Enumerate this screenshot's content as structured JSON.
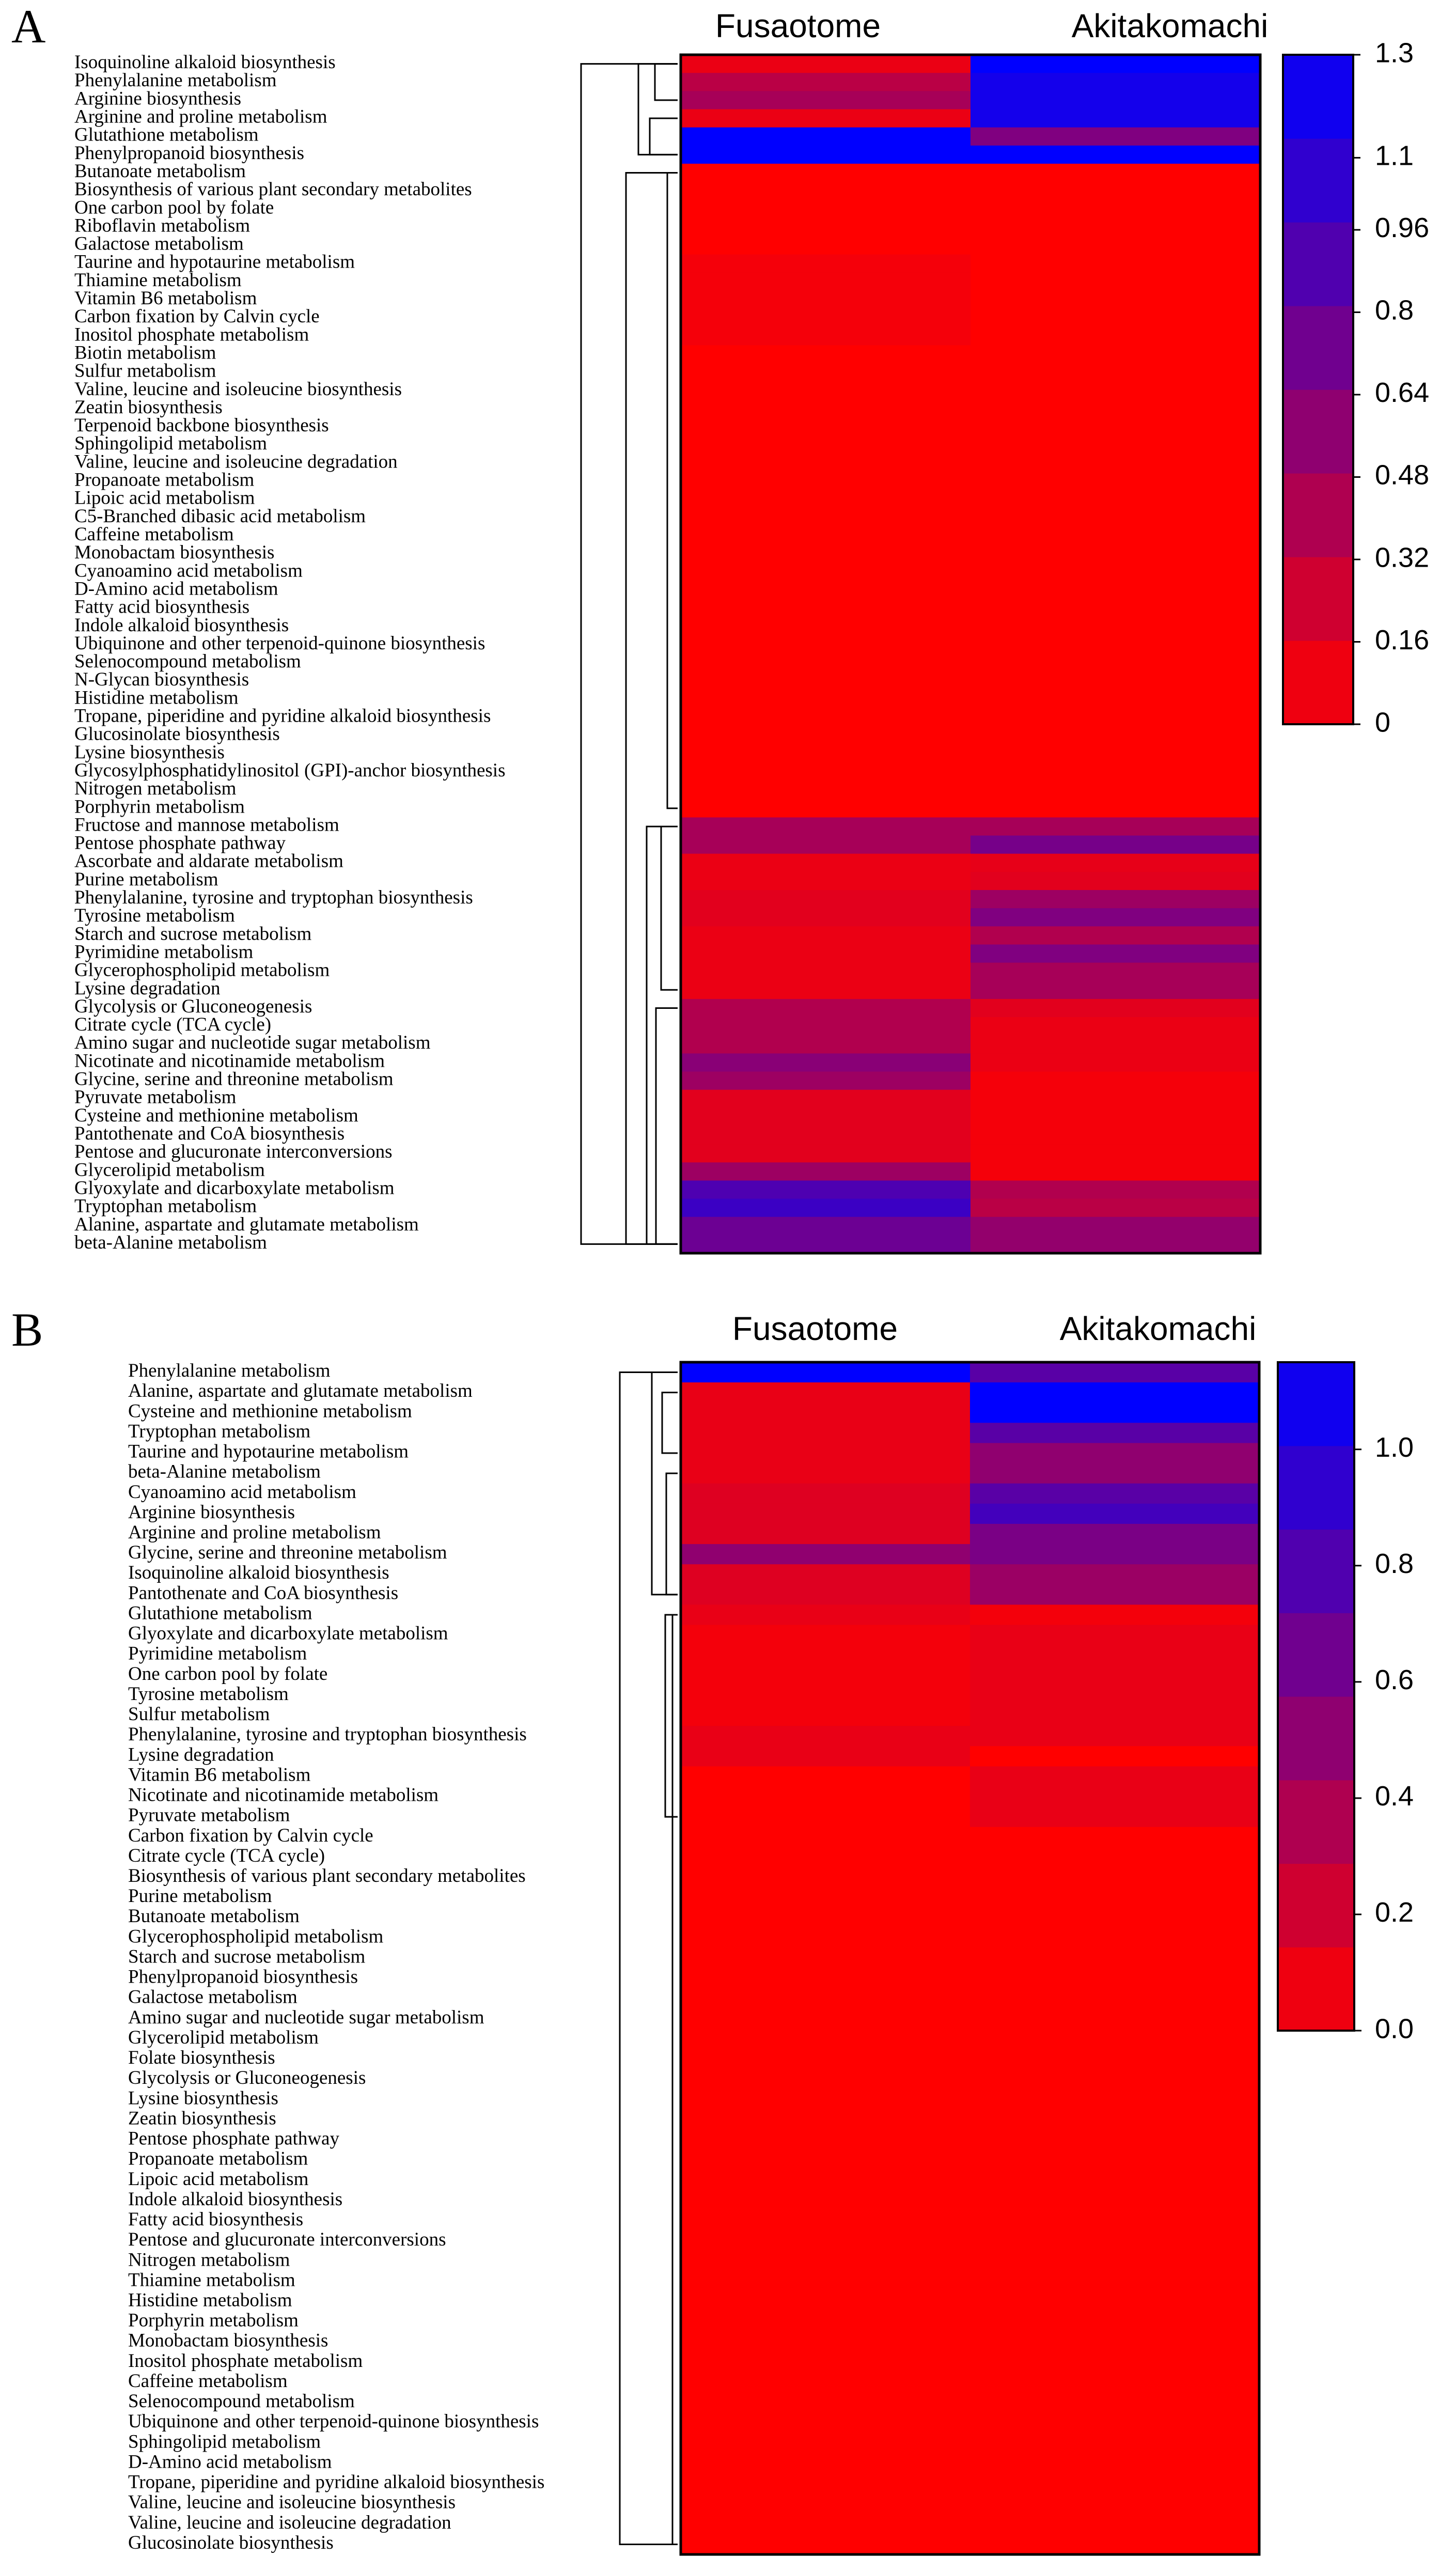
{
  "chart_data": [
    {
      "type": "heatmap",
      "panel": "A",
      "columns": [
        "Fusaotome",
        "Akitakomachi"
      ],
      "colorbar": {
        "min": 0,
        "max": 1.3,
        "ticks": [
          0,
          0.16,
          0.32,
          0.48,
          0.64,
          0.8,
          0.96,
          1.1,
          1.3
        ],
        "tick_labels": [
          "0",
          "0.16",
          "0.32",
          "0.48",
          "0.64",
          "0.8",
          "0.96",
          "1.1",
          "1.3"
        ],
        "low_color": "#ff0000",
        "high_color": "#0000ff"
      },
      "rows": [
        {
          "label": "Isoquinoline alkaloid biosynthesis",
          "values": [
            0.1,
            1.3
          ]
        },
        {
          "label": "Phenylalanine metabolism",
          "values": [
            0.35,
            1.2
          ]
        },
        {
          "label": "Arginine biosynthesis",
          "values": [
            0.45,
            1.2
          ]
        },
        {
          "label": "Arginine and proline metabolism",
          "values": [
            0.1,
            1.2
          ]
        },
        {
          "label": "Glutathione metabolism",
          "values": [
            1.3,
            0.65
          ]
        },
        {
          "label": "Phenylpropanoid biosynthesis",
          "values": [
            1.3,
            1.3
          ]
        },
        {
          "label": "Butanoate metabolism",
          "values": [
            0.0,
            0.0
          ]
        },
        {
          "label": "Biosynthesis of various plant secondary metabolites",
          "values": [
            0.0,
            0.0
          ]
        },
        {
          "label": "One carbon pool by folate",
          "values": [
            0.0,
            0.0
          ]
        },
        {
          "label": "Riboflavin metabolism",
          "values": [
            0.0,
            0.0
          ]
        },
        {
          "label": "Galactose metabolism",
          "values": [
            0.0,
            0.0
          ]
        },
        {
          "label": "Taurine and hypotaurine metabolism",
          "values": [
            0.05,
            0.0
          ]
        },
        {
          "label": "Thiamine metabolism",
          "values": [
            0.05,
            0.0
          ]
        },
        {
          "label": "Vitamin B6 metabolism",
          "values": [
            0.05,
            0.0
          ]
        },
        {
          "label": "Carbon fixation by Calvin cycle",
          "values": [
            0.05,
            0.0
          ]
        },
        {
          "label": "Inositol phosphate metabolism",
          "values": [
            0.05,
            0.0
          ]
        },
        {
          "label": "Biotin metabolism",
          "values": [
            0.0,
            0.0
          ]
        },
        {
          "label": "Sulfur metabolism",
          "values": [
            0.0,
            0.0
          ]
        },
        {
          "label": "Valine, leucine and isoleucine biosynthesis",
          "values": [
            0.0,
            0.0
          ]
        },
        {
          "label": "Zeatin biosynthesis",
          "values": [
            0.0,
            0.0
          ]
        },
        {
          "label": "Terpenoid backbone biosynthesis",
          "values": [
            0.0,
            0.0
          ]
        },
        {
          "label": "Sphingolipid metabolism",
          "values": [
            0.0,
            0.0
          ]
        },
        {
          "label": "Valine, leucine and isoleucine degradation",
          "values": [
            0.0,
            0.0
          ]
        },
        {
          "label": "Propanoate metabolism",
          "values": [
            0.0,
            0.0
          ]
        },
        {
          "label": "Lipoic acid metabolism",
          "values": [
            0.0,
            0.0
          ]
        },
        {
          "label": "C5-Branched dibasic acid metabolism",
          "values": [
            0.0,
            0.0
          ]
        },
        {
          "label": "Caffeine metabolism",
          "values": [
            0.0,
            0.0
          ]
        },
        {
          "label": "Monobactam biosynthesis",
          "values": [
            0.0,
            0.0
          ]
        },
        {
          "label": "Cyanoamino acid metabolism",
          "values": [
            0.0,
            0.0
          ]
        },
        {
          "label": "D-Amino acid metabolism",
          "values": [
            0.0,
            0.0
          ]
        },
        {
          "label": "Fatty acid biosynthesis",
          "values": [
            0.0,
            0.0
          ]
        },
        {
          "label": "Indole alkaloid biosynthesis",
          "values": [
            0.0,
            0.0
          ]
        },
        {
          "label": "Ubiquinone and other terpenoid-quinone biosynthesis",
          "values": [
            0.0,
            0.0
          ]
        },
        {
          "label": "Selenocompound metabolism",
          "values": [
            0.0,
            0.0
          ]
        },
        {
          "label": "N-Glycan biosynthesis",
          "values": [
            0.0,
            0.0
          ]
        },
        {
          "label": "Histidine metabolism",
          "values": [
            0.0,
            0.0
          ]
        },
        {
          "label": "Tropane, piperidine and pyridine alkaloid biosynthesis",
          "values": [
            0.0,
            0.0
          ]
        },
        {
          "label": "Glucosinolate biosynthesis",
          "values": [
            0.0,
            0.0
          ]
        },
        {
          "label": "Lysine biosynthesis",
          "values": [
            0.0,
            0.0
          ]
        },
        {
          "label": "Glycosylphosphatidylinositol (GPI)-anchor biosynthesis",
          "values": [
            0.0,
            0.0
          ]
        },
        {
          "label": "Nitrogen metabolism",
          "values": [
            0.0,
            0.0
          ]
        },
        {
          "label": "Porphyrin metabolism",
          "values": [
            0.0,
            0.0
          ]
        },
        {
          "label": "Fructose and mannose metabolism",
          "values": [
            0.45,
            0.45
          ]
        },
        {
          "label": "Pentose phosphate pathway",
          "values": [
            0.45,
            0.7
          ]
        },
        {
          "label": "Ascorbate and aldarate metabolism",
          "values": [
            0.1,
            0.12
          ]
        },
        {
          "label": "Purine metabolism",
          "values": [
            0.1,
            0.15
          ]
        },
        {
          "label": "Phenylalanine, tyrosine and tryptophan biosynthesis",
          "values": [
            0.15,
            0.5
          ]
        },
        {
          "label": "Tyrosine metabolism",
          "values": [
            0.15,
            0.65
          ]
        },
        {
          "label": "Starch and sucrose metabolism",
          "values": [
            0.1,
            0.4
          ]
        },
        {
          "label": "Pyrimidine metabolism",
          "values": [
            0.1,
            0.65
          ]
        },
        {
          "label": "Glycerophospholipid metabolism",
          "values": [
            0.1,
            0.45
          ]
        },
        {
          "label": "Lysine degradation",
          "values": [
            0.1,
            0.45
          ]
        },
        {
          "label": "Glycolysis or Gluconeogenesis",
          "values": [
            0.4,
            0.15
          ]
        },
        {
          "label": "Citrate cycle (TCA cycle)",
          "values": [
            0.4,
            0.1
          ]
        },
        {
          "label": "Amino sugar and nucleotide sugar metabolism",
          "values": [
            0.4,
            0.1
          ]
        },
        {
          "label": "Nicotinate and nicotinamide metabolism",
          "values": [
            0.6,
            0.1
          ]
        },
        {
          "label": "Glycine, serine and threonine metabolism",
          "values": [
            0.5,
            0.05
          ]
        },
        {
          "label": "Pyruvate metabolism",
          "values": [
            0.15,
            0.05
          ]
        },
        {
          "label": "Cysteine and methionine metabolism",
          "values": [
            0.15,
            0.05
          ]
        },
        {
          "label": "Pantothenate and CoA biosynthesis",
          "values": [
            0.15,
            0.05
          ]
        },
        {
          "label": "Pentose and glucuronate interconversions",
          "values": [
            0.15,
            0.05
          ]
        },
        {
          "label": "Glycerolipid metabolism",
          "values": [
            0.5,
            0.05
          ]
        },
        {
          "label": "Glyoxylate and dicarboxylate metabolism",
          "values": [
            0.9,
            0.4
          ]
        },
        {
          "label": "Tryptophan metabolism",
          "values": [
            1.0,
            0.35
          ]
        },
        {
          "label": "Alanine, aspartate and glutamate metabolism",
          "values": [
            0.75,
            0.55
          ]
        },
        {
          "label": "beta-Alanine metabolism",
          "values": [
            0.75,
            0.55
          ]
        }
      ]
    },
    {
      "type": "heatmap",
      "panel": "B",
      "columns": [
        "Fusaotome",
        "Akitakomachi"
      ],
      "colorbar": {
        "min": 0,
        "max": 1.15,
        "ticks": [
          0.0,
          0.2,
          0.4,
          0.6,
          0.8,
          1.0
        ],
        "tick_labels": [
          "0.0",
          "0.2",
          "0.4",
          "0.6",
          "0.8",
          "1.0"
        ],
        "low_color": "#ff0000",
        "high_color": "#0000ff"
      },
      "rows": [
        {
          "label": "Phenylalanine metabolism",
          "values": [
            1.15,
            0.75
          ]
        },
        {
          "label": "Alanine, aspartate and glutamate metabolism",
          "values": [
            0.1,
            1.15
          ]
        },
        {
          "label": "Cysteine and methionine metabolism",
          "values": [
            0.1,
            1.15
          ]
        },
        {
          "label": "Tryptophan metabolism",
          "values": [
            0.1,
            0.75
          ]
        },
        {
          "label": "Taurine and hypotaurine metabolism",
          "values": [
            0.1,
            0.5
          ]
        },
        {
          "label": "beta-Alanine metabolism",
          "values": [
            0.1,
            0.5
          ]
        },
        {
          "label": "Cyanoamino acid metabolism",
          "values": [
            0.15,
            0.75
          ]
        },
        {
          "label": "Arginine biosynthesis",
          "values": [
            0.15,
            0.85
          ]
        },
        {
          "label": "Arginine and proline metabolism",
          "values": [
            0.15,
            0.6
          ]
        },
        {
          "label": "Glycine, serine and threonine metabolism",
          "values": [
            0.5,
            0.6
          ]
        },
        {
          "label": "Isoquinoline alkaloid biosynthesis",
          "values": [
            0.15,
            0.45
          ]
        },
        {
          "label": "Pantothenate and CoA biosynthesis",
          "values": [
            0.15,
            0.45
          ]
        },
        {
          "label": "Glutathione metabolism",
          "values": [
            0.1,
            0.05
          ]
        },
        {
          "label": "Glyoxylate and dicarboxylate metabolism",
          "values": [
            0.05,
            0.1
          ]
        },
        {
          "label": "Pyrimidine metabolism",
          "values": [
            0.05,
            0.1
          ]
        },
        {
          "label": "One carbon pool by folate",
          "values": [
            0.05,
            0.1
          ]
        },
        {
          "label": "Tyrosine metabolism",
          "values": [
            0.05,
            0.1
          ]
        },
        {
          "label": "Sulfur metabolism",
          "values": [
            0.05,
            0.1
          ]
        },
        {
          "label": "Phenylalanine, tyrosine and tryptophan biosynthesis",
          "values": [
            0.1,
            0.1
          ]
        },
        {
          "label": "Lysine degradation",
          "values": [
            0.1,
            0.0
          ]
        },
        {
          "label": "Vitamin B6 metabolism",
          "values": [
            0.0,
            0.1
          ]
        },
        {
          "label": "Nicotinate and nicotinamide metabolism",
          "values": [
            0.0,
            0.1
          ]
        },
        {
          "label": "Pyruvate metabolism",
          "values": [
            0.0,
            0.1
          ]
        },
        {
          "label": "Carbon fixation by Calvin cycle",
          "values": [
            0.0,
            0.0
          ]
        },
        {
          "label": "Citrate cycle (TCA cycle)",
          "values": [
            0.0,
            0.0
          ]
        },
        {
          "label": "Biosynthesis of various plant secondary metabolites",
          "values": [
            0.0,
            0.0
          ]
        },
        {
          "label": "Purine metabolism",
          "values": [
            0.0,
            0.0
          ]
        },
        {
          "label": "Butanoate metabolism",
          "values": [
            0.0,
            0.0
          ]
        },
        {
          "label": "Glycerophospholipid metabolism",
          "values": [
            0.0,
            0.0
          ]
        },
        {
          "label": "Starch and sucrose metabolism",
          "values": [
            0.0,
            0.0
          ]
        },
        {
          "label": "Phenylpropanoid biosynthesis",
          "values": [
            0.0,
            0.0
          ]
        },
        {
          "label": "Galactose metabolism",
          "values": [
            0.0,
            0.0
          ]
        },
        {
          "label": "Amino sugar and nucleotide sugar metabolism",
          "values": [
            0.0,
            0.0
          ]
        },
        {
          "label": "Glycerolipid metabolism",
          "values": [
            0.0,
            0.0
          ]
        },
        {
          "label": "Folate biosynthesis",
          "values": [
            0.0,
            0.0
          ]
        },
        {
          "label": "Glycolysis or Gluconeogenesis",
          "values": [
            0.0,
            0.0
          ]
        },
        {
          "label": "Lysine biosynthesis",
          "values": [
            0.0,
            0.0
          ]
        },
        {
          "label": "Zeatin biosynthesis",
          "values": [
            0.0,
            0.0
          ]
        },
        {
          "label": "Pentose phosphate pathway",
          "values": [
            0.0,
            0.0
          ]
        },
        {
          "label": "Propanoate metabolism",
          "values": [
            0.0,
            0.0
          ]
        },
        {
          "label": "Lipoic acid metabolism",
          "values": [
            0.0,
            0.0
          ]
        },
        {
          "label": "Indole alkaloid biosynthesis",
          "values": [
            0.0,
            0.0
          ]
        },
        {
          "label": "Fatty acid biosynthesis",
          "values": [
            0.0,
            0.0
          ]
        },
        {
          "label": "Pentose and glucuronate interconversions",
          "values": [
            0.0,
            0.0
          ]
        },
        {
          "label": "Nitrogen metabolism",
          "values": [
            0.0,
            0.0
          ]
        },
        {
          "label": "Thiamine metabolism",
          "values": [
            0.0,
            0.0
          ]
        },
        {
          "label": "Histidine metabolism",
          "values": [
            0.0,
            0.0
          ]
        },
        {
          "label": "Porphyrin metabolism",
          "values": [
            0.0,
            0.0
          ]
        },
        {
          "label": "Monobactam biosynthesis",
          "values": [
            0.0,
            0.0
          ]
        },
        {
          "label": "Inositol phosphate metabolism",
          "values": [
            0.0,
            0.0
          ]
        },
        {
          "label": "Caffeine metabolism",
          "values": [
            0.0,
            0.0
          ]
        },
        {
          "label": "Selenocompound metabolism",
          "values": [
            0.0,
            0.0
          ]
        },
        {
          "label": "Ubiquinone and other terpenoid-quinone biosynthesis",
          "values": [
            0.0,
            0.0
          ]
        },
        {
          "label": "Sphingolipid metabolism",
          "values": [
            0.0,
            0.0
          ]
        },
        {
          "label": "D-Amino acid metabolism",
          "values": [
            0.0,
            0.0
          ]
        },
        {
          "label": "Tropane, piperidine and pyridine alkaloid biosynthesis",
          "values": [
            0.0,
            0.0
          ]
        },
        {
          "label": "Valine, leucine and isoleucine biosynthesis",
          "values": [
            0.0,
            0.0
          ]
        },
        {
          "label": "Valine, leucine and isoleucine degradation",
          "values": [
            0.0,
            0.0
          ]
        },
        {
          "label": "Glucosinolate biosynthesis",
          "values": [
            0.0,
            0.0
          ]
        }
      ]
    }
  ]
}
